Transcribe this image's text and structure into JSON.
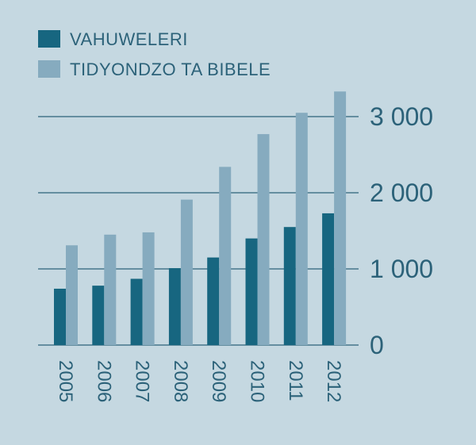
{
  "chart_data": {
    "type": "bar",
    "title": "",
    "xlabel": "",
    "ylabel": "",
    "categories": [
      "2005",
      "2006",
      "2007",
      "2008",
      "2009",
      "2010",
      "2011",
      "2012"
    ],
    "series": [
      {
        "name": "VAHUWELERI",
        "color": "#176680",
        "values": [
          740,
          780,
          870,
          1010,
          1150,
          1400,
          1550,
          1730
        ]
      },
      {
        "name": "TIDYONDZO TA BIBELE",
        "color": "#86abbf",
        "values": [
          1310,
          1450,
          1480,
          1910,
          2340,
          2770,
          3050,
          3330
        ]
      }
    ],
    "ylim": [
      0,
      3500
    ],
    "yticks": [
      0,
      1000,
      2000,
      3000
    ],
    "ytick_labels": [
      "0",
      "1 000",
      "2 000",
      "3 000"
    ],
    "grid": true,
    "legend": "top-left",
    "colors": {
      "background": "#c5d8e1",
      "gridline": "#2c6279",
      "text": "#2c6279"
    }
  }
}
